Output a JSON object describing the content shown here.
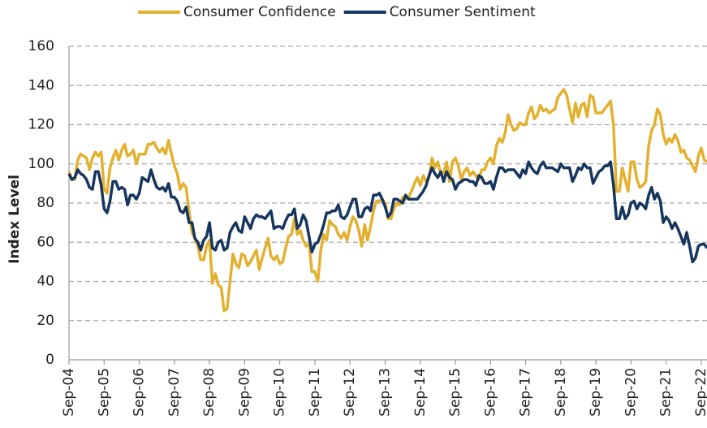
{
  "chart_data": {
    "type": "line",
    "ylabel": "Index Level",
    "categories": [
      "Sep-04",
      null,
      null,
      null,
      null,
      null,
      null,
      null,
      null,
      null,
      null,
      null,
      "Sep-05",
      null,
      null,
      null,
      null,
      null,
      null,
      null,
      null,
      null,
      null,
      null,
      "Sep-06",
      null,
      null,
      null,
      null,
      null,
      null,
      null,
      null,
      null,
      null,
      null,
      "Sep-07",
      null,
      null,
      null,
      null,
      null,
      null,
      null,
      null,
      null,
      null,
      null,
      "Sep-08",
      null,
      null,
      null,
      null,
      null,
      null,
      null,
      null,
      null,
      null,
      null,
      "Sep-09",
      null,
      null,
      null,
      null,
      null,
      null,
      null,
      null,
      null,
      null,
      null,
      "Sep-10",
      null,
      null,
      null,
      null,
      null,
      null,
      null,
      null,
      null,
      null,
      null,
      "Sep-11",
      null,
      null,
      null,
      null,
      null,
      null,
      null,
      null,
      null,
      null,
      null,
      "Sep-12",
      null,
      null,
      null,
      null,
      null,
      null,
      null,
      null,
      null,
      null,
      null,
      "Sep-13",
      null,
      null,
      null,
      null,
      null,
      null,
      null,
      null,
      null,
      null,
      null,
      "Sep-14",
      null,
      null,
      null,
      null,
      null,
      null,
      null,
      null,
      null,
      null,
      null,
      "Sep-15",
      null,
      null,
      null,
      null,
      null,
      null,
      null,
      null,
      null,
      null,
      null,
      "Sep-16",
      null,
      null,
      null,
      null,
      null,
      null,
      null,
      null,
      null,
      null,
      null,
      "Sep-17",
      null,
      null,
      null,
      null,
      null,
      null,
      null,
      null,
      null,
      null,
      null,
      "Sep-18",
      null,
      null,
      null,
      null,
      null,
      null,
      null,
      null,
      null,
      null,
      null,
      "Sep-19",
      null,
      null,
      null,
      null,
      null,
      null,
      null,
      null,
      null,
      null,
      null,
      "Sep-20",
      null,
      null,
      null,
      null,
      null,
      null,
      null,
      null,
      null,
      null,
      null,
      "Sep-21",
      null,
      null,
      null,
      null,
      null,
      null,
      null,
      null,
      null,
      null,
      null,
      "Sep-22",
      null,
      null
    ],
    "series": [
      {
        "name": "Consumer Confidence",
        "color": "#e3b12f",
        "values": [
          96,
          92,
          92,
          102,
          105,
          104,
          103,
          97,
          103,
          106,
          104,
          106,
          87,
          85,
          98,
          103,
          107,
          102,
          107,
          110,
          104,
          105,
          107,
          100,
          105,
          105,
          105,
          110,
          110,
          111,
          108,
          106,
          108,
          105,
          112,
          105,
          99,
          95,
          87,
          90,
          88,
          76,
          65,
          62,
          58,
          51,
          51,
          58,
          61,
          39,
          44,
          38,
          37,
          25,
          26,
          40,
          54,
          49,
          47,
          54,
          53,
          48,
          50,
          53,
          56,
          46,
          52,
          57,
          62,
          53,
          51,
          53,
          49,
          50,
          57,
          63,
          64,
          72,
          64,
          66,
          61,
          58,
          59,
          45,
          45,
          40,
          56,
          64,
          61,
          71,
          69,
          68,
          64,
          62,
          65,
          61,
          68,
          73,
          71,
          66,
          58,
          69,
          61,
          68,
          76,
          81,
          81,
          82,
          80,
          72,
          72,
          77,
          80,
          79,
          83,
          82,
          83,
          86,
          90,
          93,
          89,
          94,
          91,
          93,
          103,
          98,
          101,
          95,
          95,
          101,
          91,
          101,
          103,
          99,
          92,
          96,
          98,
          94,
          96,
          94,
          92,
          97,
          97,
          101,
          103,
          100,
          109,
          113,
          111,
          116,
          125,
          120,
          117,
          118,
          121,
          120,
          120,
          126,
          129,
          123,
          125,
          130,
          127,
          128,
          126,
          127,
          128,
          134,
          136,
          138,
          135,
          128,
          121,
          131,
          124,
          130,
          131,
          124,
          135,
          134,
          126,
          126,
          126,
          128,
          130,
          132,
          120,
          86,
          86,
          98,
          92,
          86,
          101,
          101,
          92,
          88,
          89,
          91,
          109,
          117,
          120,
          128,
          125,
          115,
          110,
          113,
          111,
          115,
          112,
          106,
          107,
          103,
          102,
          99,
          96,
          104,
          108,
          102,
          101
        ]
      },
      {
        "name": "Consumer Sentiment",
        "color": "#17365d",
        "values": [
          95,
          92,
          93,
          97,
          95,
          94,
          92,
          88,
          87,
          96,
          96,
          89,
          77,
          75,
          81,
          91,
          91,
          87,
          88,
          87,
          79,
          84,
          84,
          82,
          85,
          93,
          92,
          91,
          97,
          92,
          88,
          87,
          88,
          86,
          90,
          83,
          83,
          81,
          76,
          75,
          78,
          70,
          70,
          62,
          60,
          56,
          61,
          63,
          70,
          57,
          56,
          60,
          61,
          56,
          57,
          65,
          68,
          70,
          66,
          65,
          73,
          70,
          67,
          72,
          74,
          73,
          73,
          72,
          74,
          76,
          67,
          68,
          68,
          67,
          71,
          74,
          74,
          77,
          67,
          69,
          74,
          71,
          63,
          55,
          59,
          60,
          64,
          69,
          75,
          75,
          76,
          76,
          79,
          73,
          72,
          74,
          78,
          82,
          82,
          73,
          73,
          77,
          78,
          76,
          84,
          84,
          85,
          82,
          78,
          73,
          75,
          82,
          82,
          81,
          80,
          84,
          82,
          82,
          82,
          82,
          84,
          86,
          89,
          94,
          98,
          95,
          93,
          96,
          91,
          96,
          93,
          92,
          87,
          90,
          91,
          92,
          92,
          91,
          91,
          89,
          94,
          93,
          90,
          90,
          91,
          87,
          93,
          98,
          98,
          96,
          97,
          97,
          97,
          95,
          93,
          97,
          95,
          101,
          98,
          96,
          95,
          99,
          101,
          98,
          98,
          98,
          97,
          96,
          100,
          98,
          98,
          98,
          91,
          94,
          98,
          97,
          100,
          98,
          98,
          90,
          93,
          96,
          97,
          99,
          99,
          101,
          89,
          72,
          72,
          78,
          72,
          74,
          80,
          81,
          77,
          80,
          79,
          77,
          84,
          88,
          82,
          85,
          81,
          70,
          73,
          71,
          67,
          70,
          67,
          63,
          59,
          65,
          58,
          50,
          52,
          58,
          59,
          59,
          57
        ]
      }
    ],
    "ylim": [
      0,
      160
    ],
    "yticks": [
      0,
      20,
      40,
      60,
      80,
      100,
      120,
      140,
      160
    ],
    "grid": true,
    "legend": "top"
  }
}
